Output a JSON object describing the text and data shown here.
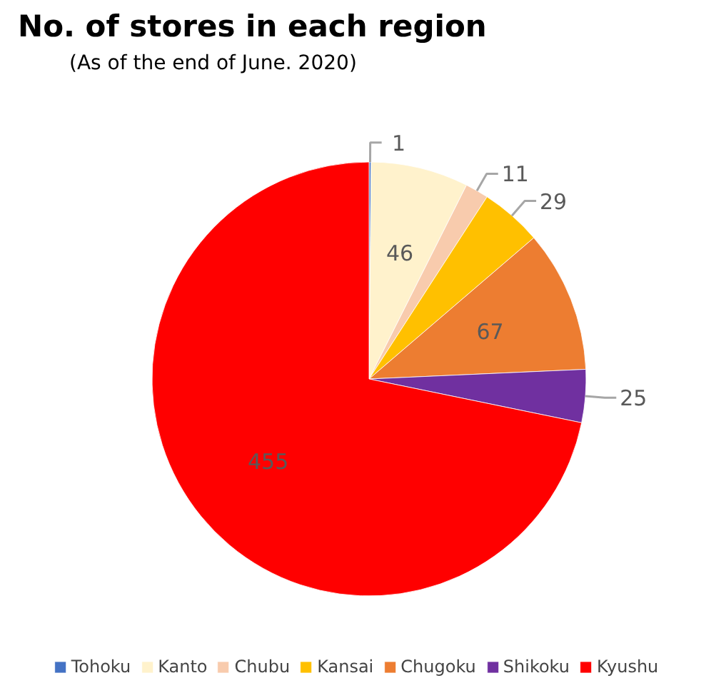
{
  "chart_data": {
    "type": "pie",
    "title": "No. of stores in each region",
    "subtitle": "(As of the end of June. 2020)",
    "categories": [
      "Tohoku",
      "Kanto",
      "Chubu",
      "Kansai",
      "Chugoku",
      "Shikoku",
      "Kyushu"
    ],
    "values": [
      1,
      46,
      11,
      29,
      67,
      25,
      455
    ],
    "colors": [
      "#4472c4",
      "#fff2cc",
      "#f8cbad",
      "#ffc000",
      "#ed7d31",
      "#7030a0",
      "#ff0000"
    ],
    "data_labels": true,
    "legend": "bottom"
  }
}
